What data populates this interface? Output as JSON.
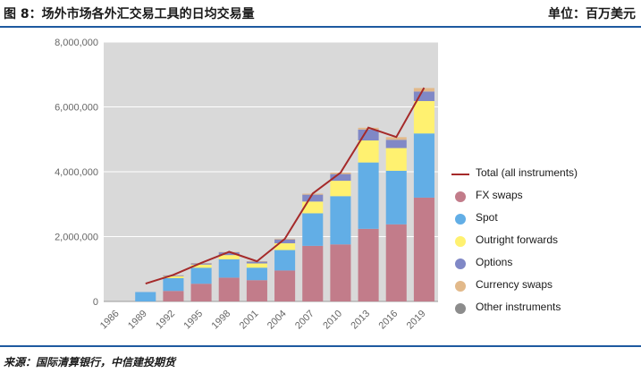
{
  "header": {
    "title": "图 8：场外市场各外汇交易工具的日均交易量",
    "unit": "单位：百万美元"
  },
  "source": "来源：国际清算银行，中信建投期货",
  "colors": {
    "accent_rule": "#1e5aa0",
    "plot_bg": "#d9d9d9",
    "total_line": "#a52a2a"
  },
  "chart_data": {
    "type": "bar",
    "stacked": true,
    "categories": [
      "1986",
      "1989",
      "1992",
      "1995",
      "1998",
      "2001",
      "2004",
      "2007",
      "2010",
      "2013",
      "2016",
      "2019"
    ],
    "ylim": [
      0,
      8000000
    ],
    "yticks": [
      0,
      2000000,
      4000000,
      6000000,
      8000000
    ],
    "ytick_labels": [
      "0",
      "2,000,000",
      "4,000,000",
      "6,000,000",
      "8,000,000"
    ],
    "grid": true,
    "legend_position": "right",
    "series": [
      {
        "name": "FX swaps",
        "color": "#c27c8a",
        "values": [
          0,
          0,
          324000,
          546000,
          734000,
          656000,
          954000,
          1714000,
          1759000,
          2239000,
          2378000,
          3202000
        ]
      },
      {
        "name": "Spot",
        "color": "#62aee6",
        "values": [
          0,
          290000,
          394000,
          494000,
          568000,
          386000,
          631000,
          1005000,
          1488000,
          2047000,
          1652000,
          1979000
        ]
      },
      {
        "name": "Outright forwards",
        "color": "#fff170",
        "values": [
          0,
          0,
          58000,
          97000,
          128000,
          130000,
          209000,
          362000,
          475000,
          679000,
          700000,
          999000
        ]
      },
      {
        "name": "Options",
        "color": "#8088c6",
        "values": [
          0,
          0,
          27000,
          41000,
          87000,
          60000,
          119000,
          212000,
          207000,
          337000,
          254000,
          294000
        ]
      },
      {
        "name": "Currency swaps",
        "color": "#e2b98a",
        "values": [
          0,
          0,
          2000,
          4000,
          10000,
          7000,
          21000,
          31000,
          43000,
          54000,
          82000,
          108000
        ]
      },
      {
        "name": "Other instruments",
        "color": "#8c8c8c",
        "values": [
          0,
          0,
          0,
          0,
          0,
          0,
          0,
          0,
          0,
          0,
          0,
          0
        ]
      }
    ],
    "line": {
      "name": "Total (all instruments)",
      "color": "#a52a2a",
      "values": [
        null,
        550000,
        820000,
        1190000,
        1530000,
        1240000,
        1930000,
        3330000,
        3970000,
        5360000,
        5070000,
        6590000
      ]
    }
  },
  "legend": {
    "items": [
      {
        "label": "Total (all instruments)",
        "kind": "line",
        "color": "#a52a2a"
      },
      {
        "label": "FX swaps",
        "kind": "dot",
        "color": "#c27c8a"
      },
      {
        "label": "Spot",
        "kind": "dot",
        "color": "#62aee6"
      },
      {
        "label": "Outright forwards",
        "kind": "dot",
        "color": "#fff170"
      },
      {
        "label": "Options",
        "kind": "dot",
        "color": "#8088c6"
      },
      {
        "label": "Currency swaps",
        "kind": "dot",
        "color": "#e2b98a"
      },
      {
        "label": "Other instruments",
        "kind": "dot",
        "color": "#8c8c8c"
      }
    ]
  }
}
